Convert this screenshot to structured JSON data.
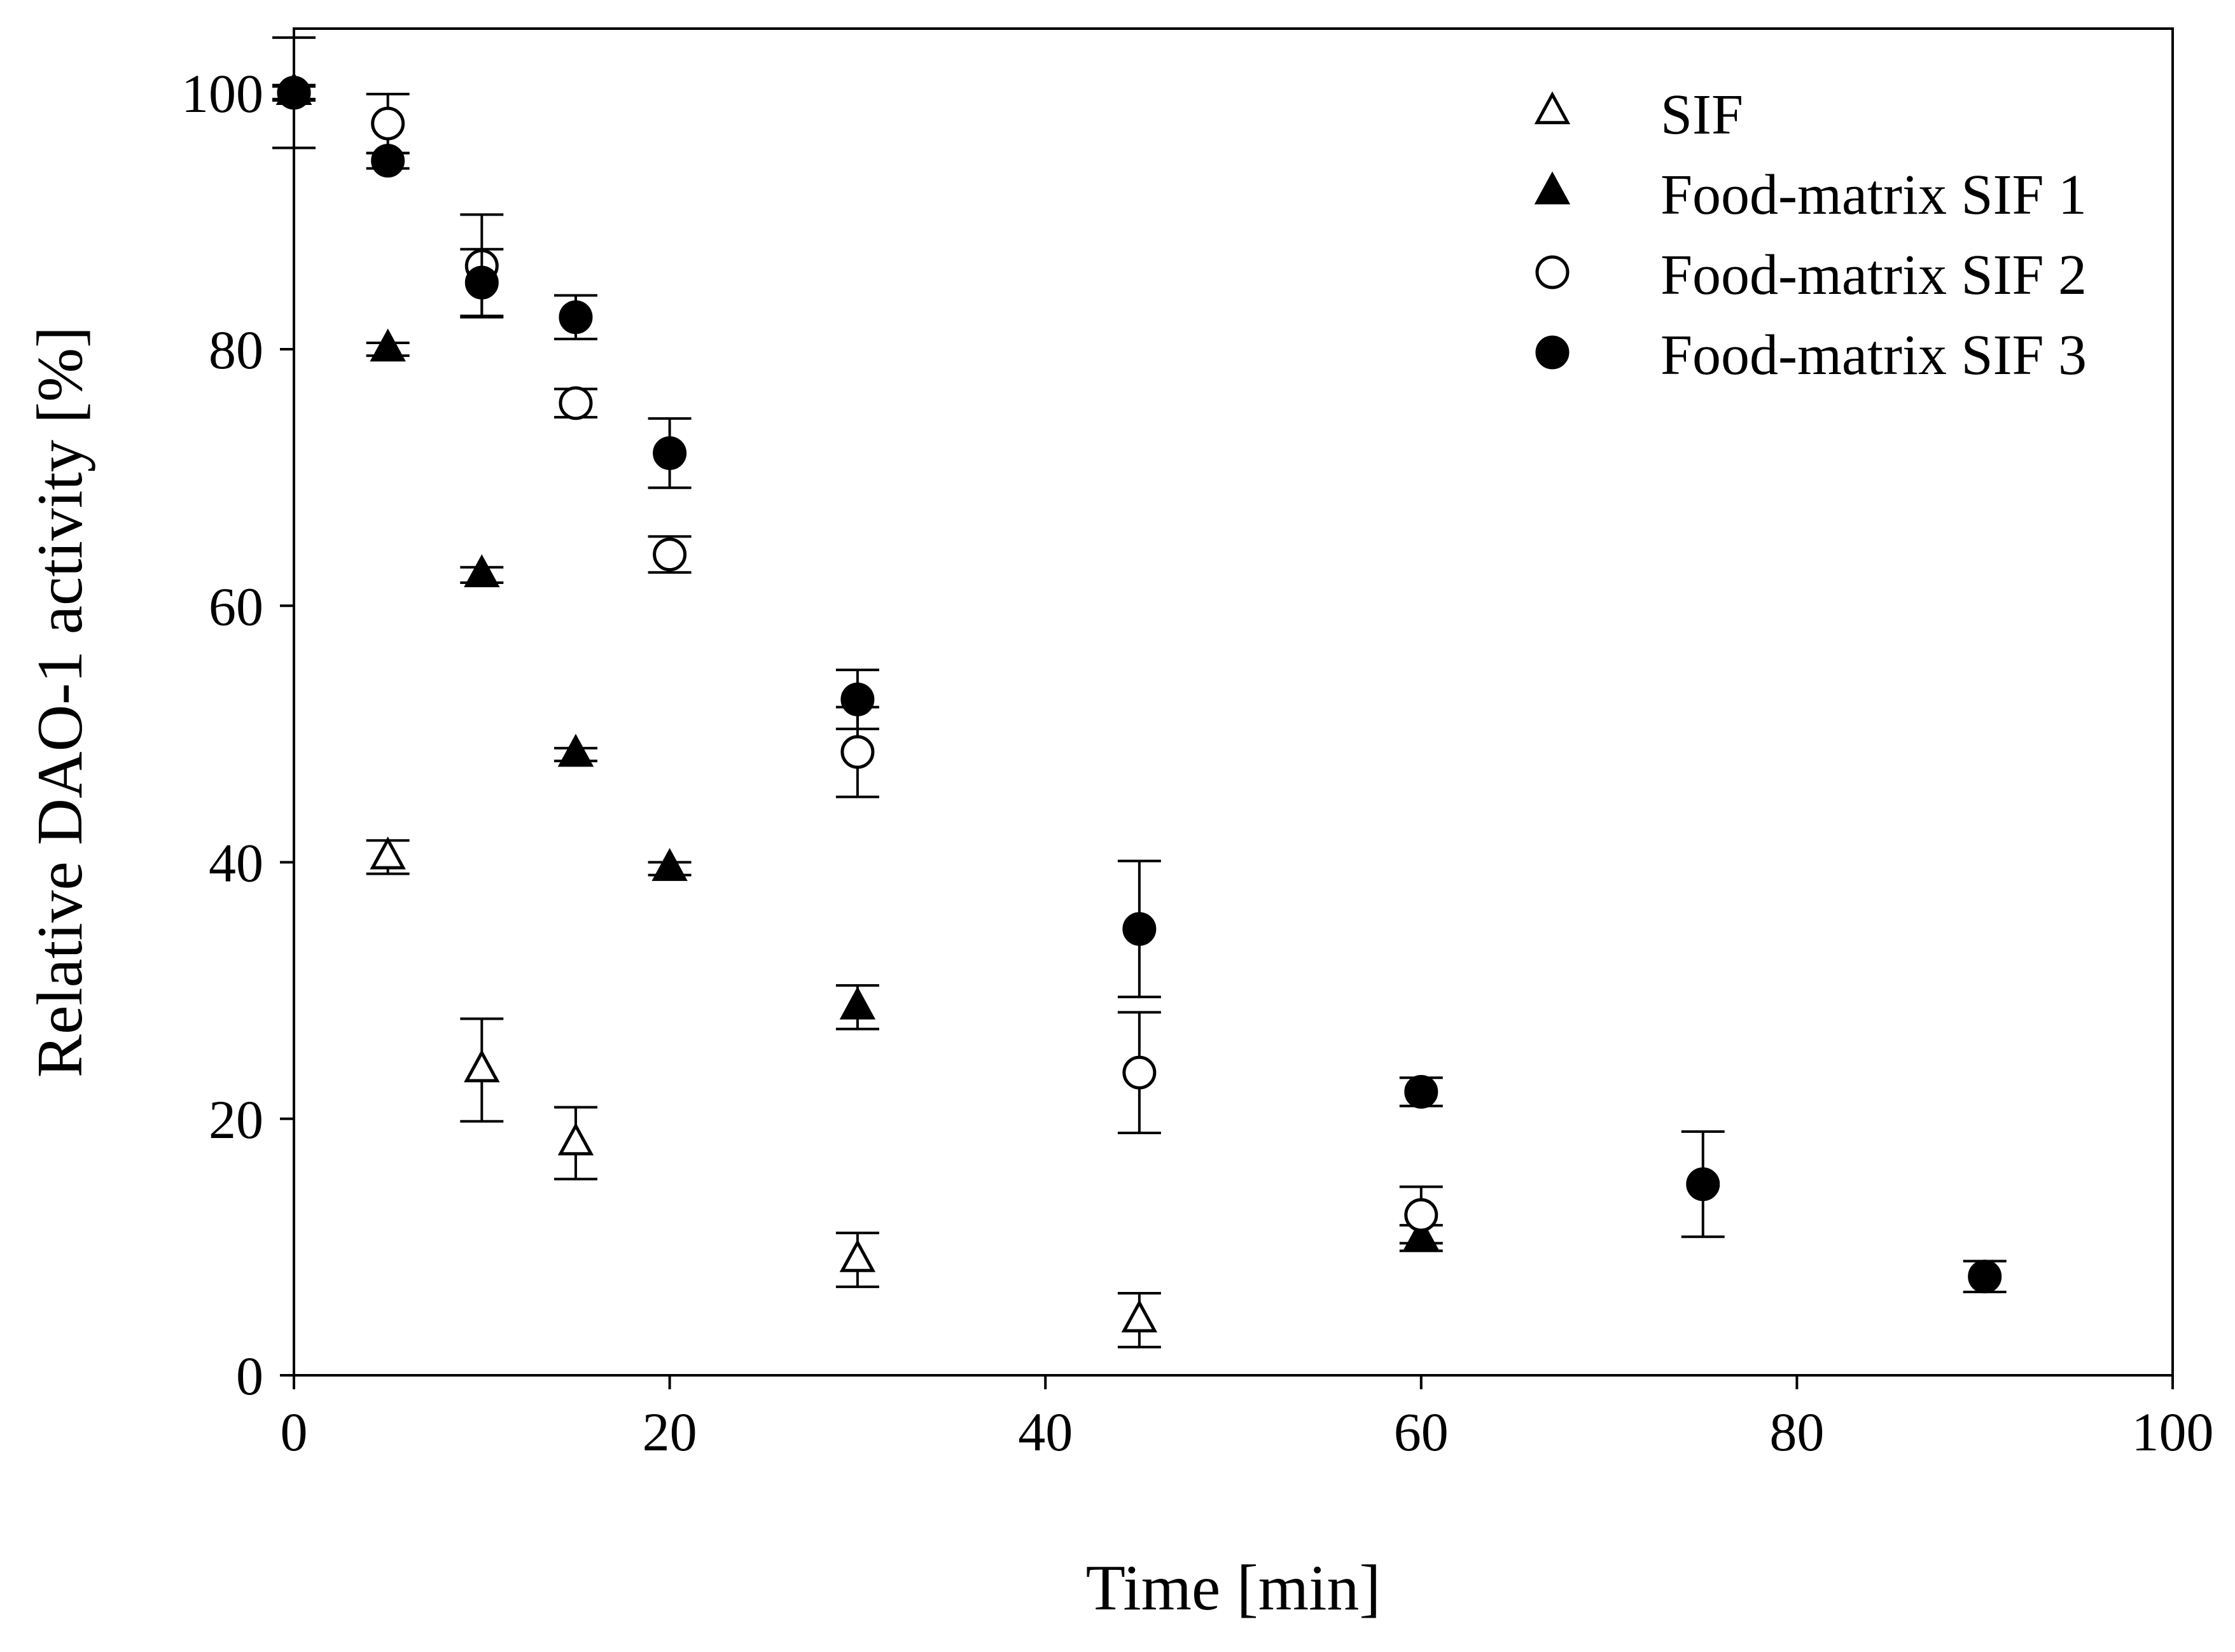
{
  "chart_data": {
    "type": "scatter",
    "title": "",
    "xlabel": "Time [min]",
    "ylabel": "Relative DAO-1 activity [%]",
    "xlim": [
      0,
      100
    ],
    "ylim": [
      0,
      105
    ],
    "xticks": [
      0,
      20,
      40,
      60,
      80,
      100
    ],
    "yticks": [
      0,
      20,
      40,
      60,
      80,
      100
    ],
    "grid": false,
    "legend_position": "top-right",
    "series": [
      {
        "name": "SIF",
        "marker": "triangle-open",
        "x": [
          0,
          5,
          10,
          15,
          30,
          45
        ],
        "y": [
          100,
          40.4,
          23.8,
          18.1,
          9.0,
          4.3
        ],
        "err": [
          4.3,
          1.3,
          4.0,
          2.8,
          2.1,
          2.1
        ]
      },
      {
        "name": "Food-matrix SIF 1",
        "marker": "triangle-filled",
        "x": [
          0,
          5,
          10,
          15,
          20,
          30,
          60
        ],
        "y": [
          100,
          80.0,
          62.4,
          48.4,
          39.5,
          28.7,
          10.7
        ],
        "err": [
          0.6,
          0.5,
          0.6,
          0.5,
          0.5,
          1.7,
          1.0
        ]
      },
      {
        "name": "Food-matrix SIF 2",
        "marker": "circle-open",
        "x": [
          0,
          5,
          10,
          15,
          20,
          30,
          45,
          60
        ],
        "y": [
          100,
          97.6,
          86.5,
          75.8,
          64.0,
          48.6,
          23.6,
          12.5
        ],
        "err": [
          0.5,
          2.3,
          4.0,
          1.1,
          1.4,
          3.5,
          4.7,
          2.2
        ]
      },
      {
        "name": "Food-matrix SIF 3",
        "marker": "circle-filled",
        "x": [
          0,
          5,
          10,
          15,
          20,
          30,
          45,
          60,
          75,
          90
        ],
        "y": [
          100,
          94.7,
          85.2,
          82.5,
          71.9,
          52.7,
          34.8,
          22.1,
          14.9,
          7.7
        ],
        "err": [
          0.5,
          0.6,
          2.6,
          1.7,
          2.7,
          2.3,
          5.3,
          1.1,
          4.1,
          1.2
        ]
      }
    ]
  }
}
